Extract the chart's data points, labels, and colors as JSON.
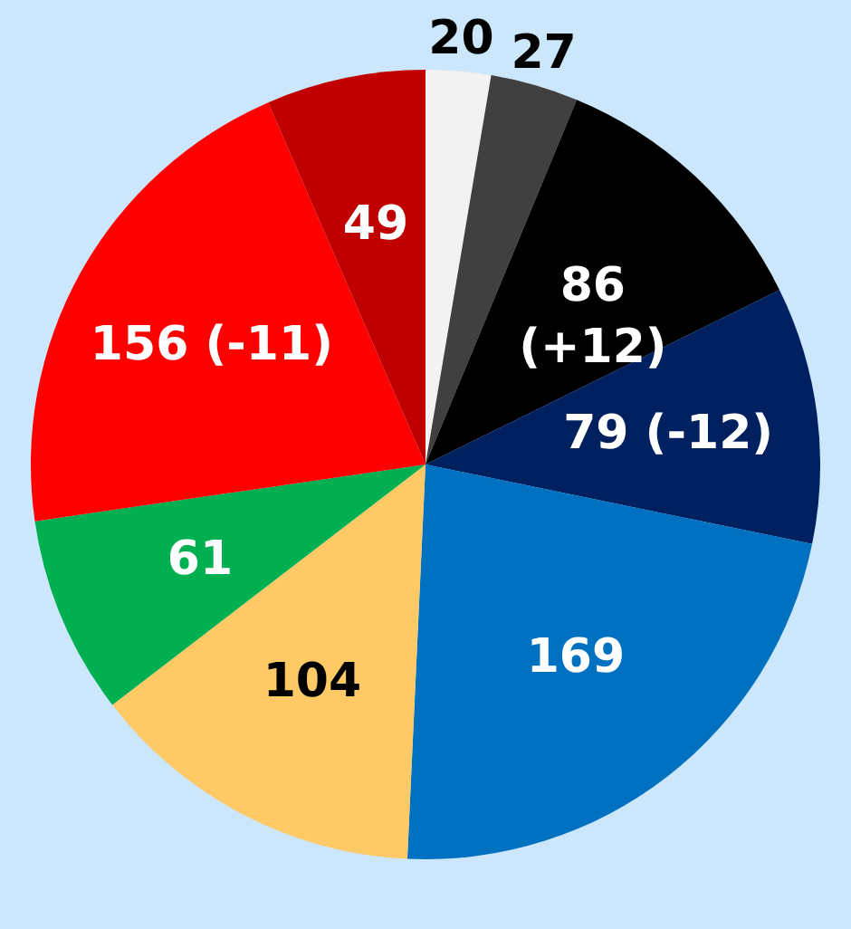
{
  "chart_data": {
    "type": "pie",
    "categories": [
      null,
      null,
      null,
      null,
      null,
      null,
      null,
      null,
      null
    ],
    "values": [
      20,
      27,
      86,
      79,
      169,
      104,
      61,
      156,
      49
    ],
    "colors": [
      "#f2f2f2",
      "#404040",
      "#000000",
      "#002060",
      "#0070c0",
      "#ffc966",
      "#00b050",
      "#ff0000",
      "#c00000"
    ],
    "value_labels": [
      "20",
      "27",
      "86 (+12)",
      "79 (-12)",
      "169",
      "104",
      "61",
      "156 (-11)",
      "49"
    ],
    "legend": false
  }
}
